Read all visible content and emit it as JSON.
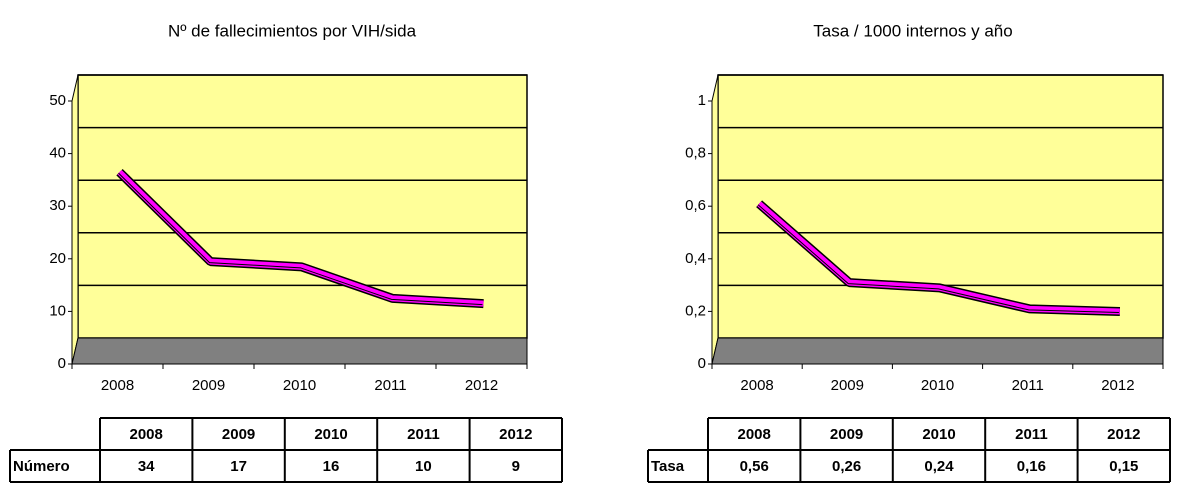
{
  "chart_data": [
    {
      "type": "line",
      "title": "Nº de fallecimientos por VIH/sida",
      "categories": [
        "2008",
        "2009",
        "2010",
        "2011",
        "2012"
      ],
      "values": [
        34,
        17,
        16,
        10,
        9
      ],
      "color": "#ff00ff",
      "ylim": [
        0,
        50
      ],
      "yticks": [
        0,
        10,
        20,
        30,
        40,
        50
      ],
      "grid": true,
      "table_row_label": "Número"
    },
    {
      "type": "line",
      "title": "Tasa / 1000 internos y año",
      "categories": [
        "2008",
        "2009",
        "2010",
        "2011",
        "2012"
      ],
      "values": [
        0.56,
        0.26,
        0.24,
        0.16,
        0.15
      ],
      "value_labels": [
        "0,56",
        "0,26",
        "0,24",
        "0,16",
        "0,15"
      ],
      "color": "#ff00ff",
      "ylim": [
        0,
        1
      ],
      "yticks": [
        0,
        {
          "value": 0.2,
          "label": "0,2"
        },
        {
          "value": 0.4,
          "label": "0,4"
        },
        {
          "value": 0.6,
          "label": "0,6"
        },
        {
          "value": 0.8,
          "label": "0,8"
        },
        1
      ],
      "grid": true,
      "table_row_label": "Tasa"
    }
  ]
}
